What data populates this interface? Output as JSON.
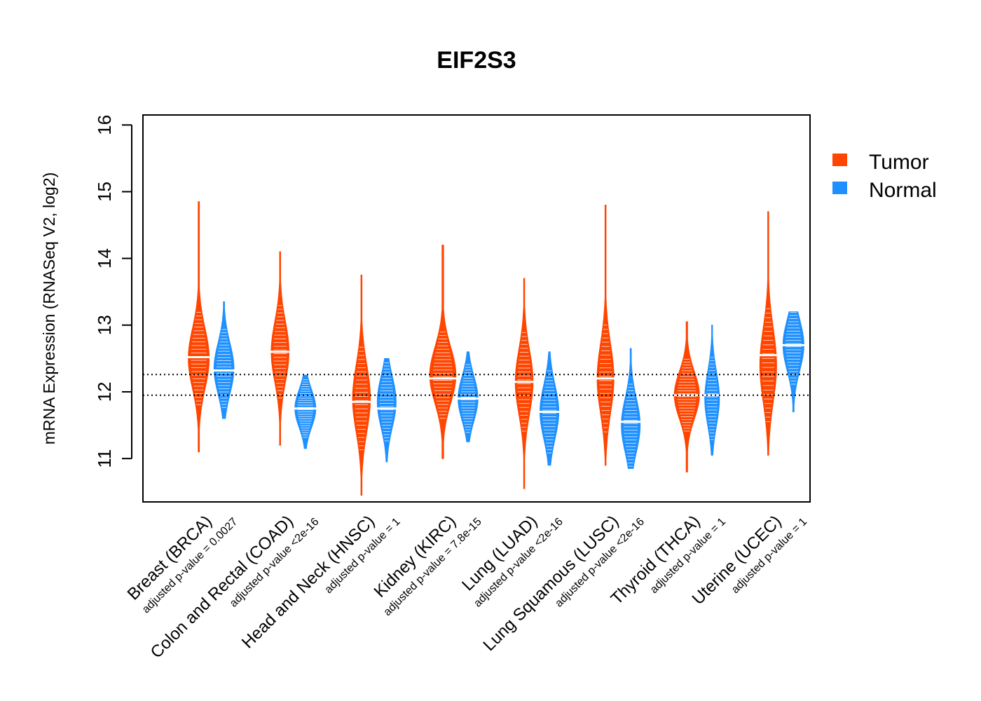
{
  "chart_data": {
    "type": "violin",
    "title": "EIF2S3",
    "ylabel": "mRNA Expression (RNASeq V2, log2)",
    "xlabel": "",
    "ylim": [
      10.35,
      16.15
    ],
    "yticks": [
      "11",
      "12",
      "13",
      "14",
      "15",
      "16"
    ],
    "reference_lines": [
      11.95,
      12.26
    ],
    "legend": {
      "position": "right",
      "entries": [
        {
          "name": "Tumor",
          "color": "#ff4500"
        },
        {
          "name": "Normal",
          "color": "#1e90ff"
        }
      ]
    },
    "categories": [
      {
        "label": "Breast (BRCA)",
        "pvalue": "adjusted p-value = 0.0027",
        "tumor": {
          "min": 11.1,
          "max": 14.85,
          "median": 12.52,
          "mode": 12.5,
          "width": 1.0,
          "sd": 0.45
        },
        "normal": {
          "min": 11.6,
          "max": 13.35,
          "median": 12.32,
          "mode": 12.35,
          "width": 0.95,
          "sd": 0.38
        }
      },
      {
        "label": "Colon and Rectal (COAD)",
        "pvalue": "adjusted p-value <2e-16",
        "tumor": {
          "min": 11.2,
          "max": 14.1,
          "median": 12.6,
          "mode": 12.6,
          "width": 0.85,
          "sd": 0.45
        },
        "normal": {
          "min": 11.15,
          "max": 12.25,
          "median": 11.75,
          "mode": 11.75,
          "width": 1.0,
          "sd": 0.28
        }
      },
      {
        "label": "Head and Neck (HNSC)",
        "pvalue": "adjusted p-value = 1",
        "tumor": {
          "min": 10.45,
          "max": 13.75,
          "median": 11.85,
          "mode": 11.9,
          "width": 0.85,
          "sd": 0.5
        },
        "normal": {
          "min": 10.95,
          "max": 12.5,
          "median": 11.75,
          "mode": 11.85,
          "width": 0.9,
          "sd": 0.38
        }
      },
      {
        "label": "Kidney (KIRC)",
        "pvalue": "adjusted p-value = 7.8e-15",
        "tumor": {
          "min": 11.0,
          "max": 14.2,
          "median": 12.2,
          "mode": 12.25,
          "width": 1.25,
          "sd": 0.42
        },
        "normal": {
          "min": 11.25,
          "max": 12.6,
          "median": 11.9,
          "mode": 11.9,
          "width": 0.95,
          "sd": 0.33
        }
      },
      {
        "label": "Lung (LUAD)",
        "pvalue": "adjusted p-value <2e-16",
        "tumor": {
          "min": 10.55,
          "max": 13.7,
          "median": 12.15,
          "mode": 12.15,
          "width": 0.85,
          "sd": 0.48
        },
        "normal": {
          "min": 10.9,
          "max": 12.6,
          "median": 11.7,
          "mode": 11.7,
          "width": 0.9,
          "sd": 0.4
        }
      },
      {
        "label": "Lung Squamous (LUSC)",
        "pvalue": "adjusted p-value <2e-16",
        "tumor": {
          "min": 10.9,
          "max": 14.8,
          "median": 12.2,
          "mode": 12.2,
          "width": 0.8,
          "sd": 0.52
        },
        "normal": {
          "min": 10.85,
          "max": 12.65,
          "median": 11.55,
          "mode": 11.5,
          "width": 0.9,
          "sd": 0.4
        }
      },
      {
        "label": "Thyroid (THCA)",
        "pvalue": "adjusted p-value = 1",
        "tumor": {
          "min": 10.8,
          "max": 13.05,
          "median": 11.95,
          "mode": 11.95,
          "width": 1.2,
          "sd": 0.35
        },
        "normal": {
          "min": 11.05,
          "max": 13.0,
          "median": 11.95,
          "mode": 11.9,
          "width": 0.7,
          "sd": 0.4
        }
      },
      {
        "label": "Uterine (UCEC)",
        "pvalue": "adjusted p-value = 1",
        "tumor": {
          "min": 11.05,
          "max": 14.7,
          "median": 12.55,
          "mode": 12.4,
          "width": 0.8,
          "sd": 0.55
        },
        "normal": {
          "min": 11.7,
          "max": 13.2,
          "median": 12.7,
          "mode": 12.7,
          "width": 1.0,
          "sd": 0.38
        }
      }
    ]
  }
}
